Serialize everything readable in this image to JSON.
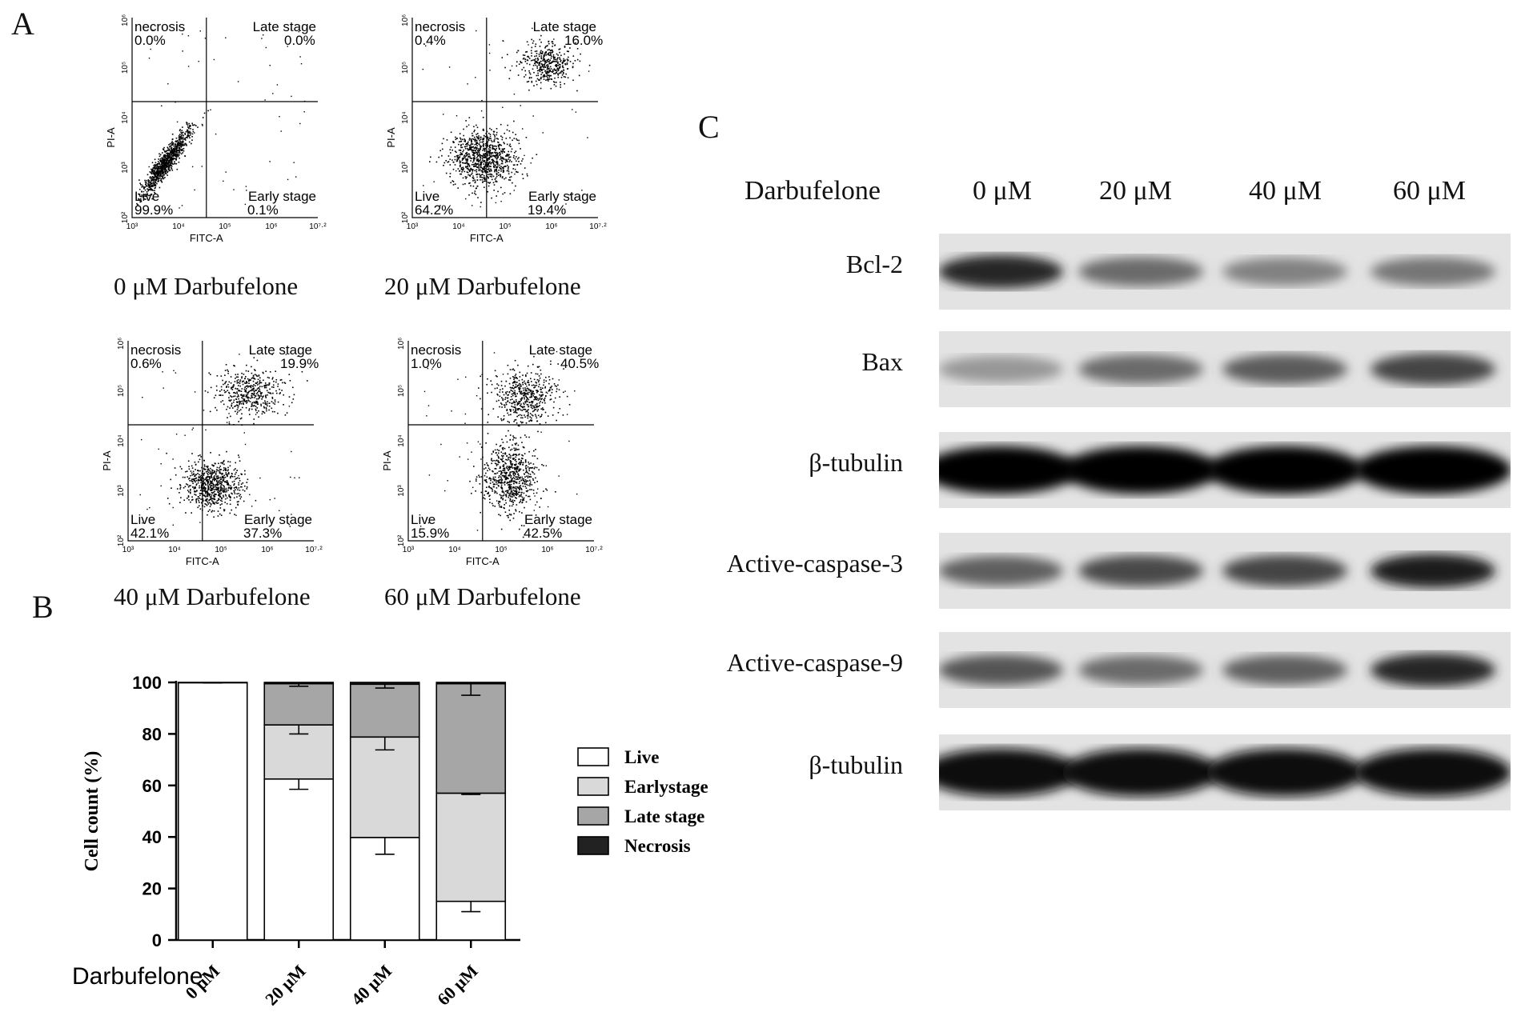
{
  "panels": {
    "A": "A",
    "B": "B",
    "C": "C"
  },
  "flow": {
    "xlabel": "FITC-A",
    "ylabel": "PI-A",
    "x_ticks": [
      "10³",
      "10⁴",
      "10⁵",
      "10⁶",
      "10⁷·²"
    ],
    "y_ticks": [
      "10²",
      "10³",
      "10⁴",
      "10⁵",
      "10⁶·³"
    ],
    "plots": [
      {
        "caption": "0 μM Darbufelone",
        "necrosis": "necrosis",
        "necrosis_pct": "0.0%",
        "late": "Late stage",
        "late_pct": "0.0%",
        "live": "Live",
        "live_pct": "99.9%",
        "early": "Early stage",
        "early_pct": "0.1%"
      },
      {
        "caption": "20 μM Darbufelone",
        "necrosis": "necrosis",
        "necrosis_pct": "0.4%",
        "late": "Late stage",
        "late_pct": "16.0%",
        "live": "Live",
        "live_pct": "64.2%",
        "early": "Early stage",
        "early_pct": "19.4%"
      },
      {
        "caption": "40 μM Darbufelone",
        "necrosis": "necrosis",
        "necrosis_pct": "0.6%",
        "late": "Late stage",
        "late_pct": "19.9%",
        "live": "Live",
        "live_pct": "42.1%",
        "early": "Early stage",
        "early_pct": "37.3%"
      },
      {
        "caption": "60 μM Darbufelone",
        "necrosis": "necrosis",
        "necrosis_pct": "1.0%",
        "late": "Late stage",
        "late_pct": "40.5%",
        "live": "Live",
        "live_pct": "15.9%",
        "early": "Early stage",
        "early_pct": "42.5%"
      }
    ]
  },
  "chart_data": {
    "type": "bar",
    "stacked": true,
    "xlabel": "Darbufelone",
    "ylabel": "Cell count (%)",
    "ylim": [
      0,
      100
    ],
    "yticks": [
      0,
      20,
      40,
      60,
      80,
      100
    ],
    "categories": [
      "0 μM",
      "20 μM",
      "40 μM",
      "60 μM"
    ],
    "series": [
      {
        "name": "Live",
        "color": "#ffffff",
        "values": [
          99.9,
          62.5,
          39.8,
          15.0
        ],
        "errors": [
          0.1,
          4.0,
          6.5,
          4.0
        ]
      },
      {
        "name": "Early stage",
        "color": "#d9d9d9",
        "values": [
          0.1,
          21.0,
          39.0,
          42.0
        ],
        "errors": [
          0,
          3.5,
          5.0,
          0.5
        ]
      },
      {
        "name": "Late stage",
        "color": "#a6a6a6",
        "values": [
          0.0,
          16.0,
          20.5,
          42.5
        ],
        "errors": [
          0,
          1.0,
          1.5,
          4.5
        ]
      },
      {
        "name": "Necrosis",
        "color": "#222222",
        "values": [
          0.0,
          0.5,
          0.7,
          0.5
        ],
        "errors": [
          0,
          0,
          0,
          0
        ]
      }
    ],
    "legend_labels": [
      "Live",
      "Earlystage",
      "Late stage",
      "Necrosis"
    ],
    "legend_position": "right"
  },
  "western": {
    "treatment_label": "Darbufelone",
    "doses": [
      "0 μM",
      "20 μM",
      "40 μM",
      "60 μM"
    ],
    "lanes": [
      {
        "label": "Bcl-2",
        "intensities": [
          0.85,
          0.55,
          0.45,
          0.5
        ]
      },
      {
        "label": "Bax",
        "intensities": [
          0.35,
          0.55,
          0.62,
          0.72
        ]
      },
      {
        "label": "β-tubulin",
        "intensities": [
          1,
          1,
          1,
          1
        ]
      },
      {
        "label": "Active-caspase-3",
        "intensities": [
          0.6,
          0.7,
          0.72,
          0.9
        ]
      },
      {
        "label": "Active-caspase-9",
        "intensities": [
          0.65,
          0.55,
          0.6,
          0.85
        ]
      },
      {
        "label": "β-tubulin",
        "intensities": [
          0.95,
          0.95,
          0.95,
          0.95
        ]
      }
    ]
  }
}
